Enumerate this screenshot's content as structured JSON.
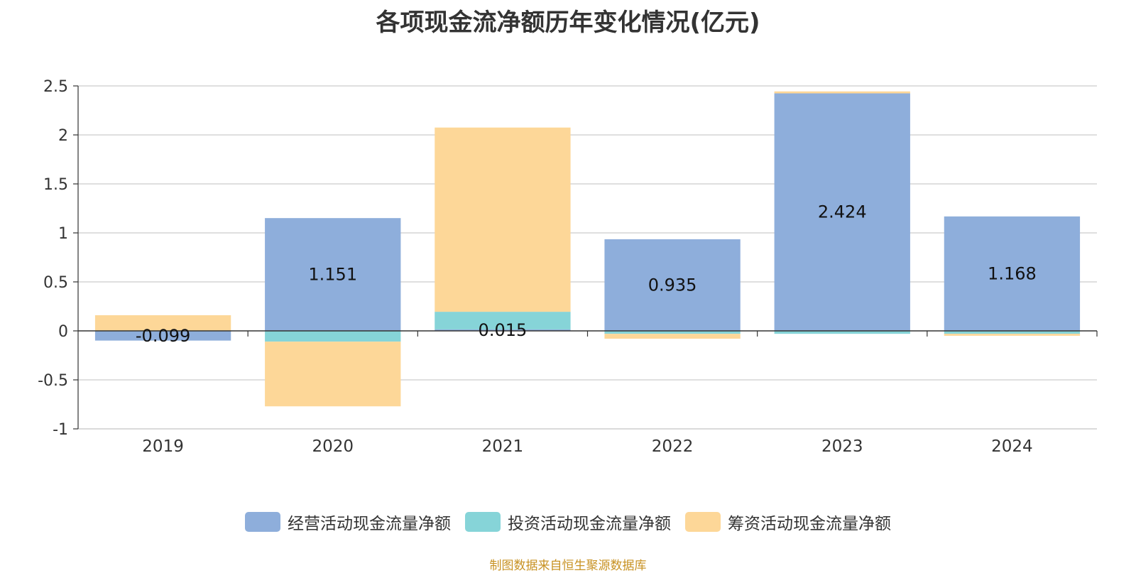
{
  "chart_data": {
    "type": "bar",
    "stacked": true,
    "title": "各项现金流净额历年变化情况(亿元)",
    "categories": [
      "2019",
      "2020",
      "2021",
      "2022",
      "2023",
      "2024"
    ],
    "series": [
      {
        "name": "经营活动现金流量净额",
        "color": "#8eaedb",
        "values": [
          -0.099,
          1.151,
          0.015,
          0.935,
          2.424,
          1.168
        ],
        "labels": [
          "-0.099",
          "1.151",
          "0.015",
          "0.935",
          "2.424",
          "1.168"
        ]
      },
      {
        "name": "投资活动现金流量净额",
        "color": "#86d4d8",
        "values": [
          0,
          -0.11,
          0.18,
          -0.03,
          -0.03,
          -0.03
        ]
      },
      {
        "name": "筹资活动现金流量净额",
        "color": "#fdd798",
        "values": [
          0.16,
          -0.66,
          1.88,
          -0.05,
          0.02,
          -0.02
        ]
      }
    ],
    "ylim": [
      -1,
      2.5
    ],
    "yticks": [
      "2.5",
      "2",
      "1.5",
      "1",
      "0.5",
      "0",
      "-0.5",
      "-1"
    ],
    "ytick_values": [
      2.5,
      2,
      1.5,
      1,
      0.5,
      0,
      -0.5,
      -1
    ],
    "grid": true,
    "legend_position": "bottom"
  },
  "source": "制图数据来自恒生聚源数据库"
}
